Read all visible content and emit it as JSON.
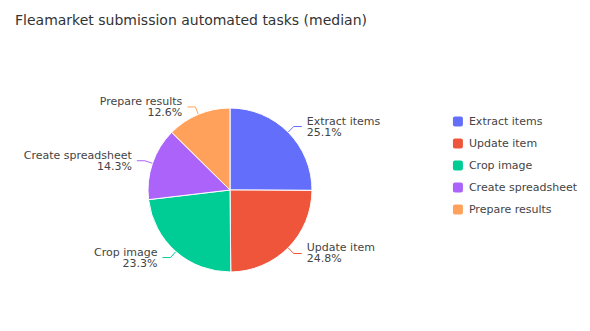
{
  "chart_data": {
    "type": "pie",
    "title": "Fleamarket submission automated tasks (median)",
    "categories": [
      "Extract items",
      "Update item",
      "Crop image",
      "Create spreadsheet",
      "Prepare results"
    ],
    "values": [
      25.1,
      24.8,
      23.3,
      14.3,
      12.6
    ],
    "value_labels": [
      "25.1%",
      "24.8%",
      "23.3%",
      "14.3%",
      "12.6%"
    ],
    "colors": [
      "#636efa",
      "#ef553b",
      "#00cc96",
      "#ab63fa",
      "#ffa15a"
    ],
    "data_labels": true,
    "legend": "right"
  }
}
